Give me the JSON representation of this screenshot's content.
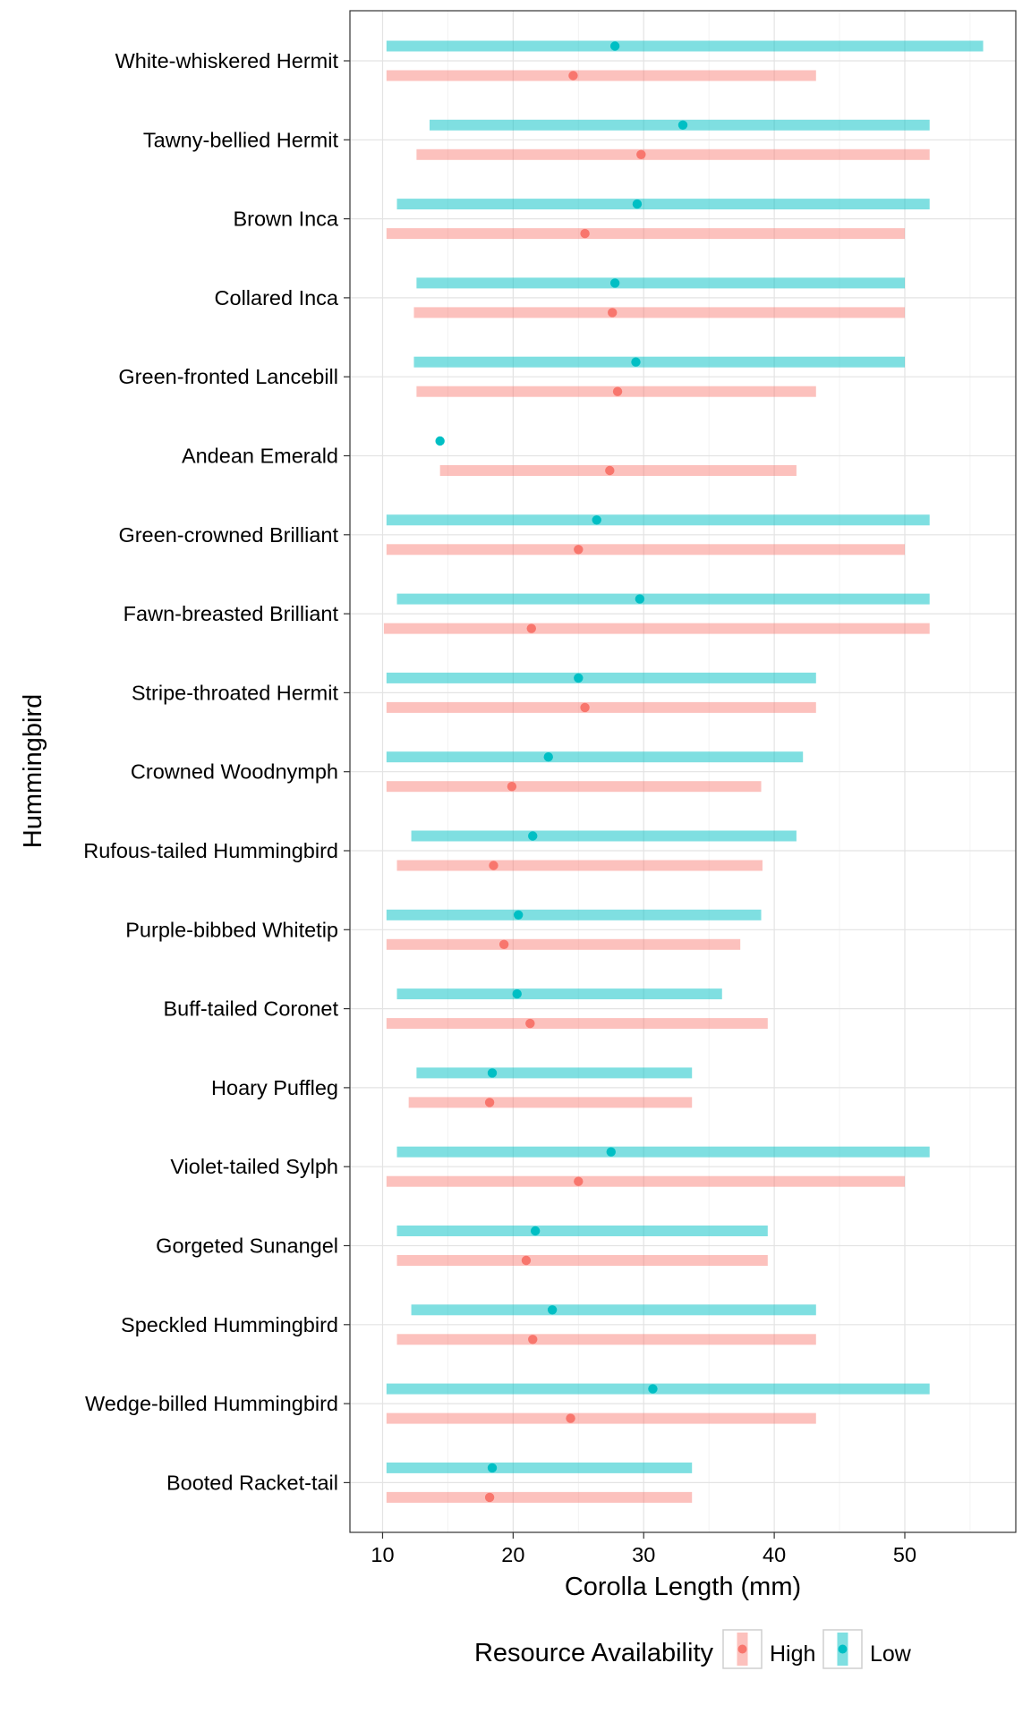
{
  "chart_data": {
    "type": "range",
    "xlabel": "Corolla Length (mm)",
    "ylabel": "Hummingbird",
    "xlim": [
      7.5,
      58.5
    ],
    "x_ticks": [
      10,
      20,
      30,
      40,
      50
    ],
    "grid": true,
    "legend": {
      "title": "Resource Availability",
      "placement": "bottom",
      "entries": [
        "High",
        "Low"
      ]
    },
    "colors": {
      "High": "#F8766D",
      "Low": "#00BFC4"
    },
    "categories": [
      "White-whiskered Hermit",
      "Tawny-bellied Hermit",
      "Brown Inca",
      "Collared Inca",
      "Green-fronted Lancebill",
      "Andean Emerald",
      "Green-crowned Brilliant",
      "Fawn-breasted Brilliant",
      "Stripe-throated Hermit",
      "Crowned Woodnymph",
      "Rufous-tailed Hummingbird",
      "Purple-bibbed Whitetip",
      "Buff-tailed Coronet",
      "Hoary Puffleg",
      "Violet-tailed Sylph",
      "Gorgeted Sunangel",
      "Speckled Hummingbird",
      "Wedge-billed Hummingbird",
      "Booted Racket-tail"
    ],
    "series": [
      {
        "name": "High",
        "ranges": [
          [
            10.3,
            43.2
          ],
          [
            12.6,
            51.9
          ],
          [
            10.3,
            50.0
          ],
          [
            12.4,
            50.0
          ],
          [
            12.6,
            43.2
          ],
          [
            14.4,
            41.7
          ],
          [
            10.3,
            50.0
          ],
          [
            10.1,
            51.9
          ],
          [
            10.3,
            43.2
          ],
          [
            10.3,
            39.0
          ],
          [
            11.1,
            39.1
          ],
          [
            10.3,
            37.4
          ],
          [
            10.3,
            39.5
          ],
          [
            12.0,
            33.7
          ],
          [
            10.3,
            50.0
          ],
          [
            11.1,
            39.5
          ],
          [
            11.1,
            43.2
          ],
          [
            10.3,
            43.2
          ],
          [
            10.3,
            33.7
          ]
        ],
        "means": [
          24.6,
          29.8,
          25.5,
          27.6,
          28.0,
          27.4,
          25.0,
          21.4,
          25.5,
          19.9,
          18.5,
          19.3,
          21.3,
          18.2,
          25.0,
          21.0,
          21.5,
          24.4,
          18.2
        ]
      },
      {
        "name": "Low",
        "ranges": [
          [
            10.3,
            56.0
          ],
          [
            13.6,
            51.9
          ],
          [
            11.1,
            51.9
          ],
          [
            12.6,
            50.0
          ],
          [
            12.4,
            50.0
          ],
          [
            14.4,
            14.4
          ],
          [
            10.3,
            51.9
          ],
          [
            11.1,
            51.9
          ],
          [
            10.3,
            43.2
          ],
          [
            10.3,
            42.2
          ],
          [
            12.2,
            41.7
          ],
          [
            10.3,
            39.0
          ],
          [
            11.1,
            36.0
          ],
          [
            12.6,
            33.7
          ],
          [
            11.1,
            51.9
          ],
          [
            11.1,
            39.5
          ],
          [
            12.2,
            43.2
          ],
          [
            10.3,
            51.9
          ],
          [
            10.3,
            33.7
          ]
        ],
        "means": [
          27.8,
          33.0,
          29.5,
          27.8,
          29.4,
          14.4,
          26.4,
          29.7,
          25.0,
          22.7,
          21.5,
          20.4,
          20.3,
          18.4,
          27.5,
          21.7,
          23.0,
          30.7,
          18.4
        ]
      }
    ]
  }
}
